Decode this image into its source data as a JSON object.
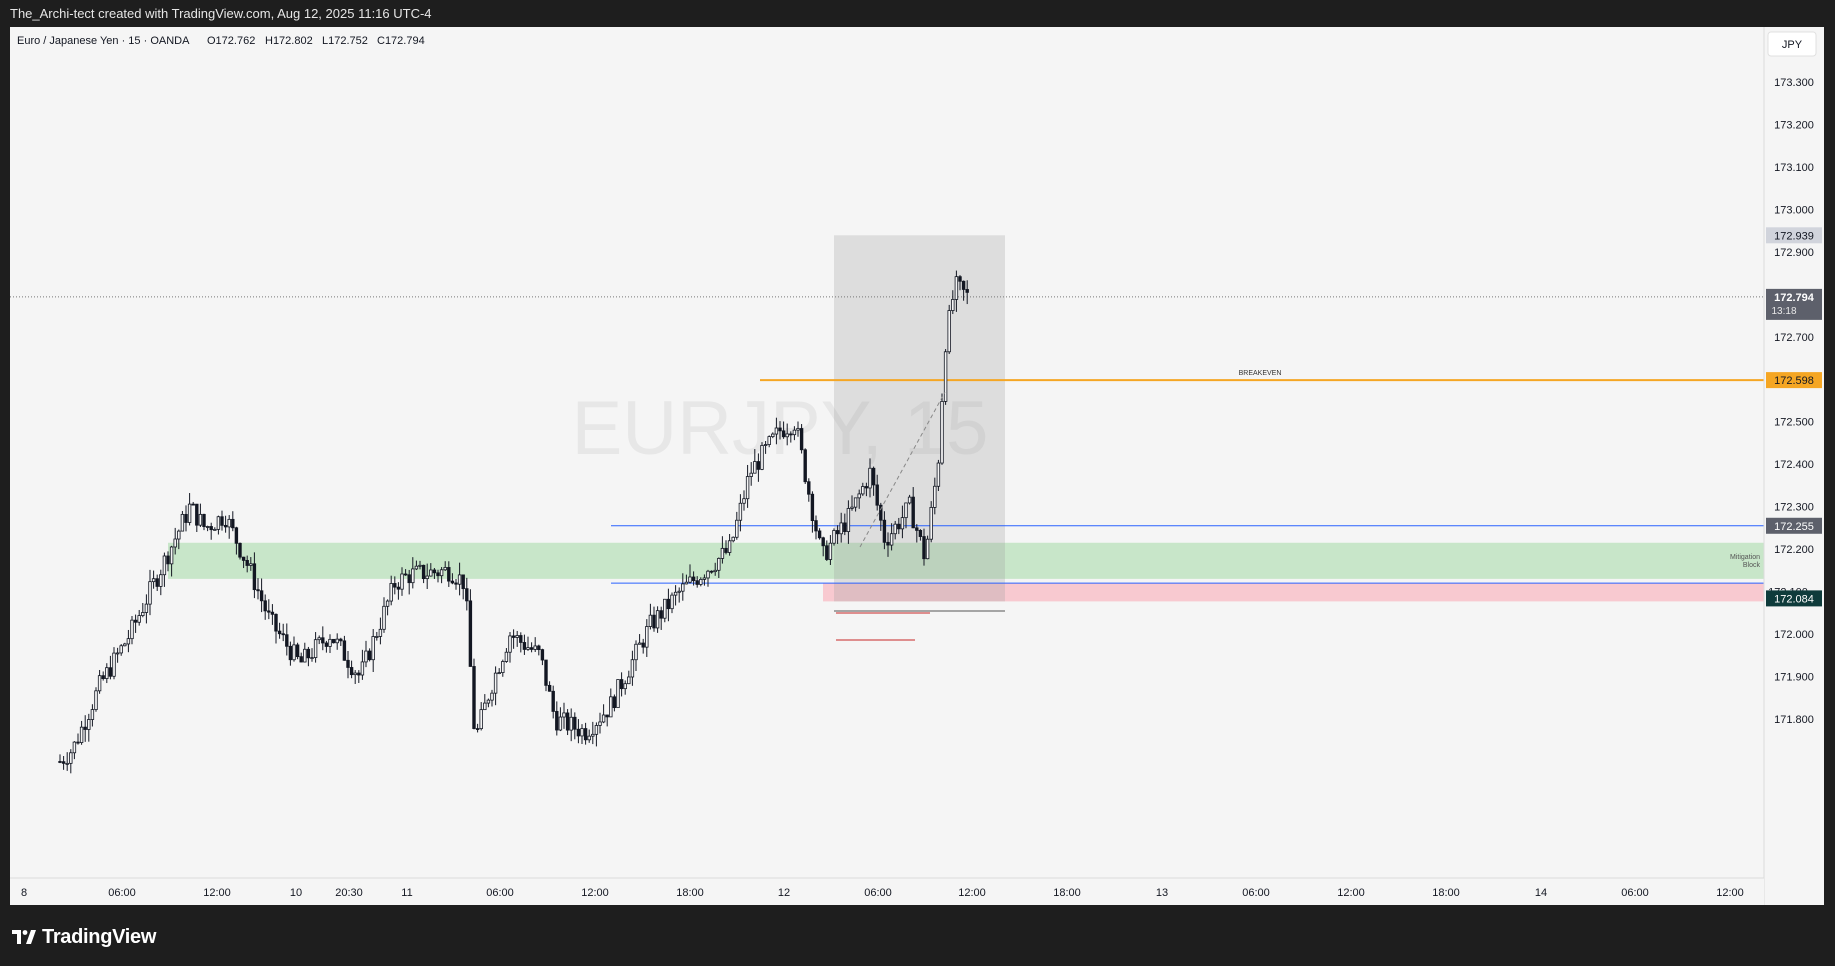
{
  "header": {
    "attribution": "The_Archi-tect created with TradingView.com, Aug 12, 2025 11:16 UTC-4"
  },
  "legend": {
    "symbol_line": "Euro / Japanese Yen · 15 · OANDA",
    "open": "O172.762",
    "high": "H172.802",
    "low": "L172.752",
    "close": "C172.794"
  },
  "watermark": "EURJPY, 15",
  "currency_button": "JPY",
  "price_axis": {
    "ticks": [
      "173.300",
      "173.200",
      "173.100",
      "173.000",
      "172.900",
      "172.700",
      "172.500",
      "172.400",
      "172.300",
      "172.200",
      "172.000",
      "171.900",
      "171.800"
    ],
    "tick_values": [
      173.3,
      173.2,
      173.1,
      173.0,
      172.9,
      172.7,
      172.5,
      172.4,
      172.3,
      172.2,
      172.0,
      171.9,
      171.8
    ],
    "partial_tick": "172.100",
    "labels": {
      "top_box": "172.939",
      "last_price": "172.794",
      "countdown": "13:18",
      "breakeven": "172.598",
      "blue_line": "172.255",
      "stop": "172.084"
    }
  },
  "time_axis": {
    "labels": [
      "8",
      "06:00",
      "12:00",
      "10",
      "20:30",
      "11",
      "06:00",
      "12:00",
      "18:00",
      "12",
      "06:00",
      "12:00",
      "18:00",
      "13",
      "06:00",
      "12:00",
      "18:00",
      "14",
      "06:00",
      "12:00"
    ]
  },
  "annotations": {
    "breakeven": "BREAKEVEN",
    "mitigation": [
      "Mitigation",
      "Block"
    ]
  },
  "levels": {
    "last_price": 172.794,
    "breakeven": 172.598,
    "blue_upper": 172.255,
    "blue_lower": 172.12,
    "zone_top": 172.215,
    "zone_bottom": 172.13,
    "stop": 172.084,
    "position_top": 172.939
  },
  "colors": {
    "up_candle": "#131722",
    "breakeven_line": "#f5a623",
    "level_line": "#2962ff",
    "zone_fill": "#c8e6c9",
    "stop_fill": "#f8c9d0",
    "last_price_label": "#5d606b",
    "stop_label": "#0e3b3b"
  },
  "brand": "TradingView",
  "chart_data": {
    "type": "candlestick",
    "symbol": "EURJPY",
    "interval": "15",
    "ylim": [
      171.76,
      173.46
    ],
    "closes_sample": [
      171.76,
      171.92,
      172.05,
      172.2,
      172.3,
      172.25,
      172.12,
      172.02,
      171.88,
      172.0,
      171.93,
      172.1,
      172.15,
      172.15,
      172.05,
      171.78,
      171.88,
      172.05,
      172.02,
      171.92,
      171.8,
      171.77,
      171.83,
      171.95,
      172.1,
      172.2,
      172.32,
      172.42,
      172.48,
      172.3,
      172.2,
      172.27,
      172.37,
      172.3,
      172.22,
      172.44,
      172.8,
      172.79
    ]
  }
}
